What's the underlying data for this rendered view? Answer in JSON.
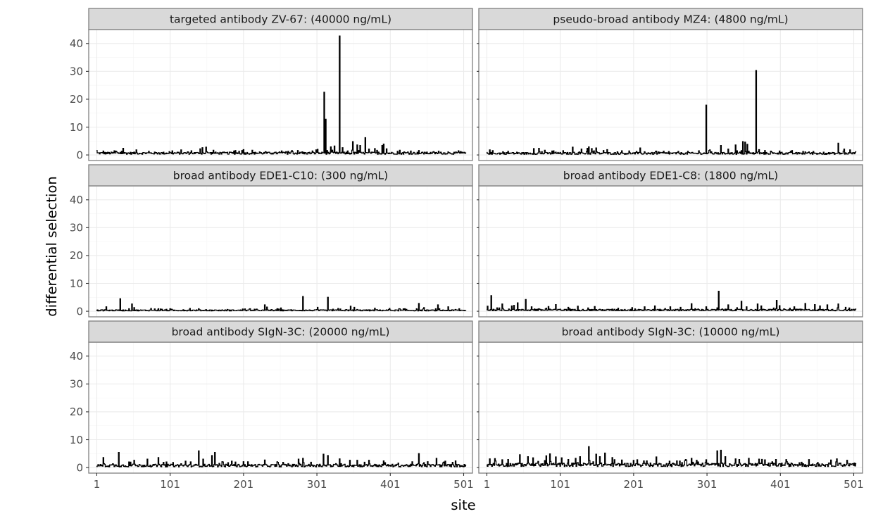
{
  "chart_data": {
    "type": "line",
    "layout": "faceted 3 rows x 2 columns",
    "xlabel": "site",
    "ylabel": "differential selection",
    "xlim": [
      -10,
      513
    ],
    "ylim": [
      -2,
      45
    ],
    "x_ticks": [
      1,
      101,
      201,
      301,
      401,
      501
    ],
    "y_ticks": [
      0,
      10,
      20,
      30,
      40
    ],
    "grid": true,
    "shared_axes": true,
    "panels": [
      {
        "title": "targeted antibody ZV-67: (40000 ng/mL)",
        "baseline": 0.6,
        "noise": 1.0,
        "peaks": [
          [
            1,
            1.6
          ],
          [
            10,
            1.4
          ],
          [
            25,
            1.5
          ],
          [
            37,
            2.4
          ],
          [
            55,
            1.8
          ],
          [
            72,
            1.3
          ],
          [
            100,
            1.2
          ],
          [
            130,
            1.5
          ],
          [
            142,
            2.2
          ],
          [
            145,
            2.6
          ],
          [
            150,
            2.8
          ],
          [
            160,
            1.7
          ],
          [
            190,
            1.6
          ],
          [
            201,
            1.9
          ],
          [
            231,
            1.2
          ],
          [
            250,
            1.1
          ],
          [
            262,
            1.3
          ],
          [
            275,
            1.6
          ],
          [
            300,
            1.8
          ],
          [
            302,
            2.0
          ],
          [
            311,
            22.5
          ],
          [
            313,
            12.8
          ],
          [
            315,
            1.6
          ],
          [
            320,
            2.9
          ],
          [
            325,
            3.2
          ],
          [
            332,
            42.7
          ],
          [
            336,
            2.6
          ],
          [
            350,
            4.8
          ],
          [
            356,
            3.6
          ],
          [
            360,
            3.4
          ],
          [
            367,
            6.2
          ],
          [
            372,
            2.1
          ],
          [
            380,
            2.3
          ],
          [
            390,
            3.4
          ],
          [
            392,
            3.9
          ],
          [
            396,
            2.2
          ],
          [
            420,
            1.1
          ],
          [
            440,
            1.6
          ],
          [
            460,
            1.2
          ],
          [
            480,
            1.1
          ],
          [
            495,
            1.0
          ],
          [
            505,
            0.8
          ]
        ]
      },
      {
        "title": "pseudo-broad antibody MZ4: (4800 ng/mL)",
        "baseline": 0.5,
        "noise": 0.9,
        "peaks": [
          [
            5,
            1.8
          ],
          [
            30,
            1.3
          ],
          [
            42,
            1.0
          ],
          [
            65,
            2.3
          ],
          [
            72,
            2.4
          ],
          [
            80,
            1.7
          ],
          [
            90,
            1.4
          ],
          [
            118,
            2.8
          ],
          [
            130,
            2.1
          ],
          [
            138,
            2.4
          ],
          [
            140,
            2.9
          ],
          [
            144,
            2.3
          ],
          [
            150,
            2.5
          ],
          [
            160,
            1.6
          ],
          [
            165,
            1.9
          ],
          [
            185,
            1.5
          ],
          [
            210,
            2.5
          ],
          [
            235,
            1.1
          ],
          [
            275,
            1.3
          ],
          [
            290,
            1.5
          ],
          [
            300,
            17.9
          ],
          [
            305,
            1.8
          ],
          [
            320,
            3.4
          ],
          [
            330,
            2.1
          ],
          [
            340,
            3.6
          ],
          [
            350,
            4.8
          ],
          [
            353,
            4.6
          ],
          [
            356,
            3.8
          ],
          [
            368,
            30.3
          ],
          [
            372,
            1.9
          ],
          [
            380,
            1.6
          ],
          [
            400,
            1.4
          ],
          [
            415,
            1.3
          ],
          [
            440,
            1.1
          ],
          [
            460,
            1.0
          ],
          [
            480,
            4.2
          ],
          [
            488,
            2.1
          ],
          [
            496,
            1.8
          ],
          [
            504,
            1.2
          ]
        ]
      },
      {
        "title": "broad antibody EDE1-C10: (300 ng/mL)",
        "baseline": 0.3,
        "noise": 0.5,
        "peaks": [
          [
            14,
            1.6
          ],
          [
            33,
            4.5
          ],
          [
            49,
            2.6
          ],
          [
            52,
            1.3
          ],
          [
            75,
            1.0
          ],
          [
            85,
            0.9
          ],
          [
            128,
            1.0
          ],
          [
            140,
            0.9
          ],
          [
            200,
            0.8
          ],
          [
            230,
            2.3
          ],
          [
            233,
            1.5
          ],
          [
            252,
            1.2
          ],
          [
            282,
            5.3
          ],
          [
            302,
            1.4
          ],
          [
            316,
            5.0
          ],
          [
            330,
            1.0
          ],
          [
            347,
            1.8
          ],
          [
            352,
            1.4
          ],
          [
            380,
            1.1
          ],
          [
            400,
            1.0
          ],
          [
            413,
            0.9
          ],
          [
            440,
            2.8
          ],
          [
            447,
            1.3
          ],
          [
            466,
            2.3
          ],
          [
            480,
            1.6
          ],
          [
            495,
            0.9
          ]
        ]
      },
      {
        "title": "broad antibody EDE1-C8: (1800 ng/mL)",
        "baseline": 0.4,
        "noise": 0.7,
        "peaks": [
          [
            2,
            1.8
          ],
          [
            7,
            5.6
          ],
          [
            22,
            2.6
          ],
          [
            35,
            1.9
          ],
          [
            38,
            2.1
          ],
          [
            43,
            3.0
          ],
          [
            54,
            4.2
          ],
          [
            62,
            1.6
          ],
          [
            85,
            1.7
          ],
          [
            95,
            2.4
          ],
          [
            112,
            1.4
          ],
          [
            125,
            1.8
          ],
          [
            148,
            1.7
          ],
          [
            180,
            1.1
          ],
          [
            199,
            1.3
          ],
          [
            216,
            1.6
          ],
          [
            230,
            1.9
          ],
          [
            251,
            1.6
          ],
          [
            265,
            1.4
          ],
          [
            280,
            2.7
          ],
          [
            300,
            1.6
          ],
          [
            317,
            7.2
          ],
          [
            330,
            2.3
          ],
          [
            348,
            3.6
          ],
          [
            355,
            1.6
          ],
          [
            370,
            2.6
          ],
          [
            375,
            1.9
          ],
          [
            396,
            3.9
          ],
          [
            400,
            2.0
          ],
          [
            420,
            1.6
          ],
          [
            435,
            2.8
          ],
          [
            448,
            2.4
          ],
          [
            455,
            1.9
          ],
          [
            465,
            2.3
          ],
          [
            480,
            2.6
          ],
          [
            490,
            1.4
          ],
          [
            505,
            0.9
          ]
        ]
      },
      {
        "title": "broad antibody SIgN-3C: (20000 ng/mL)",
        "baseline": 0.6,
        "noise": 1.2,
        "peaks": [
          [
            10,
            3.6
          ],
          [
            31,
            5.4
          ],
          [
            45,
            2.0
          ],
          [
            52,
            2.6
          ],
          [
            70,
            3.0
          ],
          [
            85,
            3.6
          ],
          [
            105,
            1.8
          ],
          [
            122,
            2.3
          ],
          [
            140,
            6.0
          ],
          [
            146,
            3.0
          ],
          [
            158,
            4.3
          ],
          [
            162,
            5.4
          ],
          [
            172,
            2.1
          ],
          [
            185,
            2.3
          ],
          [
            201,
            2.1
          ],
          [
            230,
            2.7
          ],
          [
            262,
            1.4
          ],
          [
            276,
            3.0
          ],
          [
            282,
            3.3
          ],
          [
            310,
            4.8
          ],
          [
            316,
            4.3
          ],
          [
            332,
            3.1
          ],
          [
            346,
            2.6
          ],
          [
            356,
            2.6
          ],
          [
            372,
            2.6
          ],
          [
            392,
            2.4
          ],
          [
            412,
            1.6
          ],
          [
            440,
            5.0
          ],
          [
            452,
            2.1
          ],
          [
            464,
            3.3
          ],
          [
            476,
            2.3
          ],
          [
            490,
            2.4
          ]
        ]
      },
      {
        "title": "broad antibody SIgN-3C: (10000 ng/mL)",
        "baseline": 0.9,
        "noise": 1.6,
        "peaks": [
          [
            5,
            3.1
          ],
          [
            12,
            3.2
          ],
          [
            22,
            2.8
          ],
          [
            30,
            2.9
          ],
          [
            46,
            4.6
          ],
          [
            57,
            3.9
          ],
          [
            64,
            3.5
          ],
          [
            82,
            4.2
          ],
          [
            87,
            4.9
          ],
          [
            95,
            3.8
          ],
          [
            103,
            3.5
          ],
          [
            112,
            2.9
          ],
          [
            122,
            3.3
          ],
          [
            128,
            3.9
          ],
          [
            140,
            7.5
          ],
          [
            150,
            4.8
          ],
          [
            155,
            3.9
          ],
          [
            162,
            5.2
          ],
          [
            172,
            3.6
          ],
          [
            185,
            2.7
          ],
          [
            206,
            2.8
          ],
          [
            215,
            2.4
          ],
          [
            232,
            3.8
          ],
          [
            250,
            2.3
          ],
          [
            272,
            2.9
          ],
          [
            280,
            3.3
          ],
          [
            287,
            2.6
          ],
          [
            300,
            2.8
          ],
          [
            315,
            6.0
          ],
          [
            320,
            6.2
          ],
          [
            326,
            3.9
          ],
          [
            340,
            3.1
          ],
          [
            358,
            3.3
          ],
          [
            372,
            3.0
          ],
          [
            395,
            2.9
          ],
          [
            410,
            2.1
          ],
          [
            430,
            1.9
          ],
          [
            452,
            1.8
          ],
          [
            470,
            2.7
          ],
          [
            478,
            3.1
          ],
          [
            492,
            2.6
          ],
          [
            504,
            1.4
          ]
        ]
      }
    ]
  }
}
